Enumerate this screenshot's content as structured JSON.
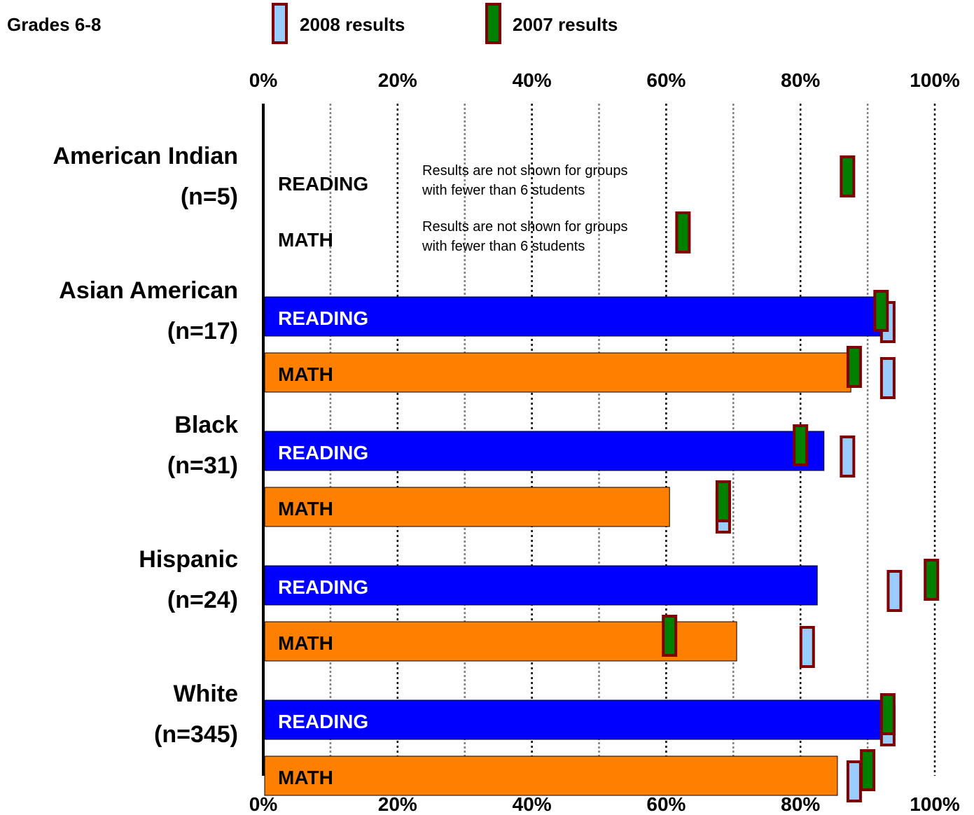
{
  "chart_data": {
    "type": "bar",
    "orientation": "horizontal",
    "title": "Grades 6-8",
    "legend": {
      "placement": "top",
      "items": [
        {
          "label": "2008 results",
          "fill": "#99ccff",
          "border": "#800000"
        },
        {
          "label": "2007 results",
          "fill": "#008000",
          "border": "#800000"
        }
      ]
    },
    "xlim": [
      0,
      100
    ],
    "ticks": [
      "0%",
      "20%",
      "40%",
      "60%",
      "80%",
      "100%"
    ],
    "tick_values": [
      0,
      20,
      40,
      60,
      80,
      100
    ],
    "grid": true,
    "colors": {
      "reading": "#0000ff",
      "math": "#ff8000"
    },
    "groups": [
      {
        "name": "American Indian",
        "n": "(n=5)",
        "suppressed": true,
        "note": "Results are not shown for groups with fewer than 6 students",
        "bars": [
          {
            "subject": "READING",
            "value": null,
            "marker_2008": null,
            "marker_2007": 87
          },
          {
            "subject": "MATH",
            "value": null,
            "marker_2008": null,
            "marker_2007": 62.5
          }
        ]
      },
      {
        "name": "Asian American",
        "n": "(n=17)",
        "bars": [
          {
            "subject": "READING",
            "value": 93,
            "marker_2008": 93,
            "marker_2007": 92
          },
          {
            "subject": "MATH",
            "value": 87.5,
            "marker_2008": 93,
            "marker_2007": 88
          }
        ]
      },
      {
        "name": "Black",
        "n": "(n=31)",
        "bars": [
          {
            "subject": "READING",
            "value": 83.5,
            "marker_2008": 87,
            "marker_2007": 80
          },
          {
            "subject": "MATH",
            "value": 60.5,
            "marker_2008": 68.5,
            "marker_2007": 68.5
          }
        ]
      },
      {
        "name": "Hispanic",
        "n": "(n=24)",
        "bars": [
          {
            "subject": "READING",
            "value": 82.5,
            "marker_2008": 94,
            "marker_2007": 99.5
          },
          {
            "subject": "MATH",
            "value": 70.5,
            "marker_2008": 81,
            "marker_2007": 60.5
          }
        ]
      },
      {
        "name": "White",
        "n": "(n=345)",
        "bars": [
          {
            "subject": "READING",
            "value": 92.5,
            "marker_2008": 93,
            "marker_2007": 93
          },
          {
            "subject": "MATH",
            "value": 85.5,
            "marker_2008": 88,
            "marker_2007": 90
          }
        ]
      }
    ]
  }
}
